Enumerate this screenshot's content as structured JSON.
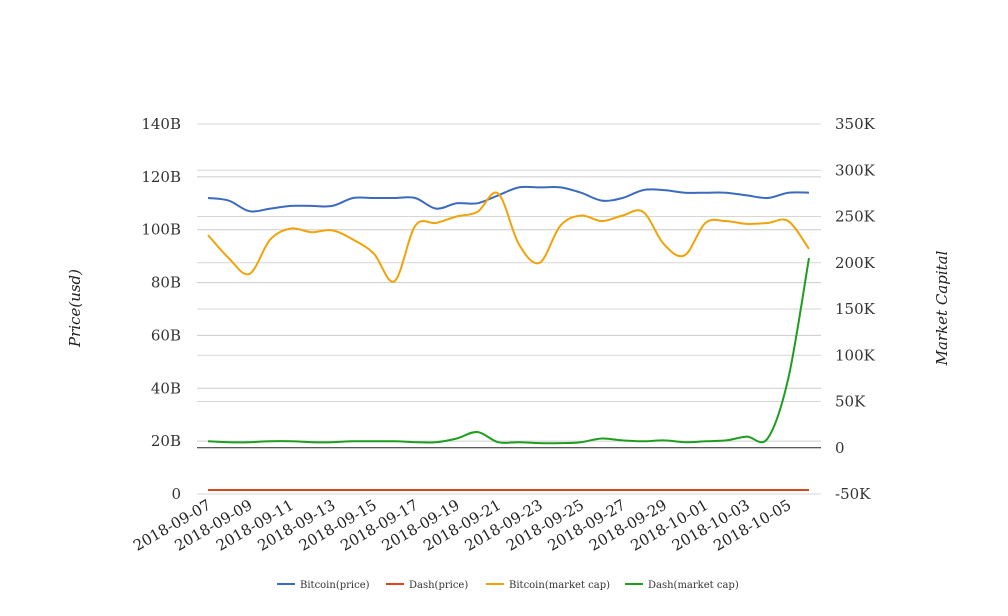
{
  "chart_data": {
    "type": "line",
    "title": "",
    "ylabel": "Price(usd)",
    "y2label": "Market Capital",
    "y_ticks": [
      "0",
      "20B",
      "40B",
      "60B",
      "80B",
      "100B",
      "120B",
      "140B"
    ],
    "y2_ticks": [
      "-50K",
      "0",
      "50K",
      "100K",
      "150K",
      "200K",
      "250K",
      "300K",
      "350K"
    ],
    "ylim": [
      0,
      140
    ],
    "y2lim": [
      -50,
      350
    ],
    "x_ticks": [
      "2018-09-07",
      "2018-09-09",
      "2018-09-11",
      "2018-09-13",
      "2018-09-15",
      "2018-09-17",
      "2018-09-19",
      "2018-09-21",
      "2018-09-23",
      "2018-09-25",
      "2018-09-27",
      "2018-09-29",
      "2018-10-01",
      "2018-10-03",
      "2018-10-05"
    ],
    "x": [
      "2018-09-07",
      "2018-09-08",
      "2018-09-09",
      "2018-09-10",
      "2018-09-11",
      "2018-09-12",
      "2018-09-13",
      "2018-09-14",
      "2018-09-15",
      "2018-09-16",
      "2018-09-17",
      "2018-09-18",
      "2018-09-19",
      "2018-09-20",
      "2018-09-21",
      "2018-09-22",
      "2018-09-23",
      "2018-09-24",
      "2018-09-25",
      "2018-09-26",
      "2018-09-27",
      "2018-09-28",
      "2018-09-29",
      "2018-09-30",
      "2018-10-01",
      "2018-10-02",
      "2018-10-03",
      "2018-10-04",
      "2018-10-05",
      "2018-10-06"
    ],
    "legend_position": "bottom",
    "grid": true,
    "series": [
      {
        "name": "Bitcoin(price)",
        "axis": "left",
        "color": "#3b6bbf",
        "values": [
          112,
          111,
          107,
          108,
          109,
          109,
          109,
          112,
          112,
          112,
          112,
          108,
          110,
          110,
          113,
          116,
          116,
          116,
          114,
          111,
          112,
          115,
          115,
          114,
          114,
          114,
          113,
          112,
          114,
          114
        ]
      },
      {
        "name": "Dash(price)",
        "axis": "left",
        "color": "#d9481e",
        "values": [
          1.5,
          1.5,
          1.5,
          1.5,
          1.5,
          1.5,
          1.5,
          1.5,
          1.5,
          1.5,
          1.5,
          1.5,
          1.5,
          1.5,
          1.5,
          1.5,
          1.5,
          1.5,
          1.5,
          1.5,
          1.5,
          1.5,
          1.5,
          1.5,
          1.5,
          1.5,
          1.5,
          1.5,
          1.5,
          1.5
        ]
      },
      {
        "name": "Bitcoin(market cap)",
        "axis": "right",
        "color": "#f0a30a",
        "values": [
          230,
          205,
          188,
          225,
          237,
          233,
          235,
          225,
          210,
          180,
          240,
          243,
          250,
          255,
          275,
          220,
          200,
          240,
          251,
          245,
          251,
          255,
          220,
          208,
          243,
          245,
          242,
          243,
          245,
          215
        ]
      },
      {
        "name": "Dash(market cap)",
        "axis": "right",
        "color": "#1e9e1e",
        "values": [
          7,
          6,
          6,
          7,
          7,
          6,
          6,
          7,
          7,
          7,
          6,
          6,
          10,
          17,
          6,
          6,
          5,
          5,
          6,
          10,
          8,
          7,
          8,
          6,
          7,
          8,
          12,
          10,
          75,
          205
        ]
      }
    ]
  }
}
